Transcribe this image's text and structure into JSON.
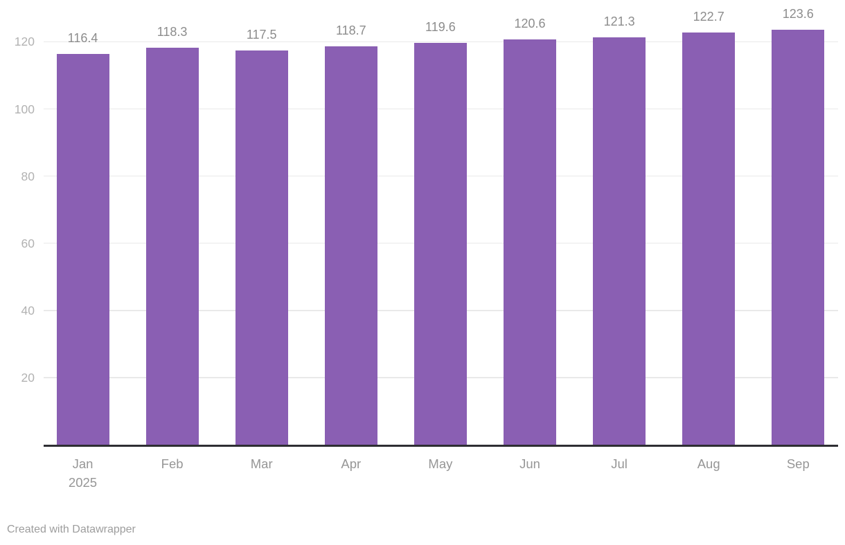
{
  "chart_data": {
    "type": "bar",
    "title": "",
    "xlabel": "",
    "ylabel": "",
    "categories": [
      "Jan 2025",
      "Feb",
      "Mar",
      "Apr",
      "May",
      "Jun",
      "Jul",
      "Aug",
      "Sep"
    ],
    "x_tick_lines": [
      [
        "Jan",
        "2025"
      ],
      [
        "Feb"
      ],
      [
        "Mar"
      ],
      [
        "Apr"
      ],
      [
        "May"
      ],
      [
        "Jun"
      ],
      [
        "Jul"
      ],
      [
        "Aug"
      ],
      [
        "Sep"
      ]
    ],
    "values": [
      116.4,
      118.3,
      117.5,
      118.7,
      119.6,
      120.6,
      121.3,
      122.7,
      123.6
    ],
    "value_labels": [
      "116.4",
      "118.3",
      "117.5",
      "118.7",
      "119.6",
      "120.6",
      "121.3",
      "122.7",
      "123.6"
    ],
    "yticks": [
      20,
      40,
      60,
      80,
      100,
      120
    ],
    "ylim": [
      0,
      126
    ],
    "grid": "horizontal",
    "legend": "none",
    "colors": {
      "bar": "#8a5fb3",
      "grid_line": "#e9e9e9",
      "axis_line": "#2e2e33",
      "y_tick_text": "#b2b2b2",
      "x_tick_text": "#969696",
      "value_label_text": "#8c8c8c",
      "footer_text": "#9d9d9d",
      "background": "#ffffff"
    }
  },
  "footer": {
    "text": "Created with Datawrapper"
  }
}
